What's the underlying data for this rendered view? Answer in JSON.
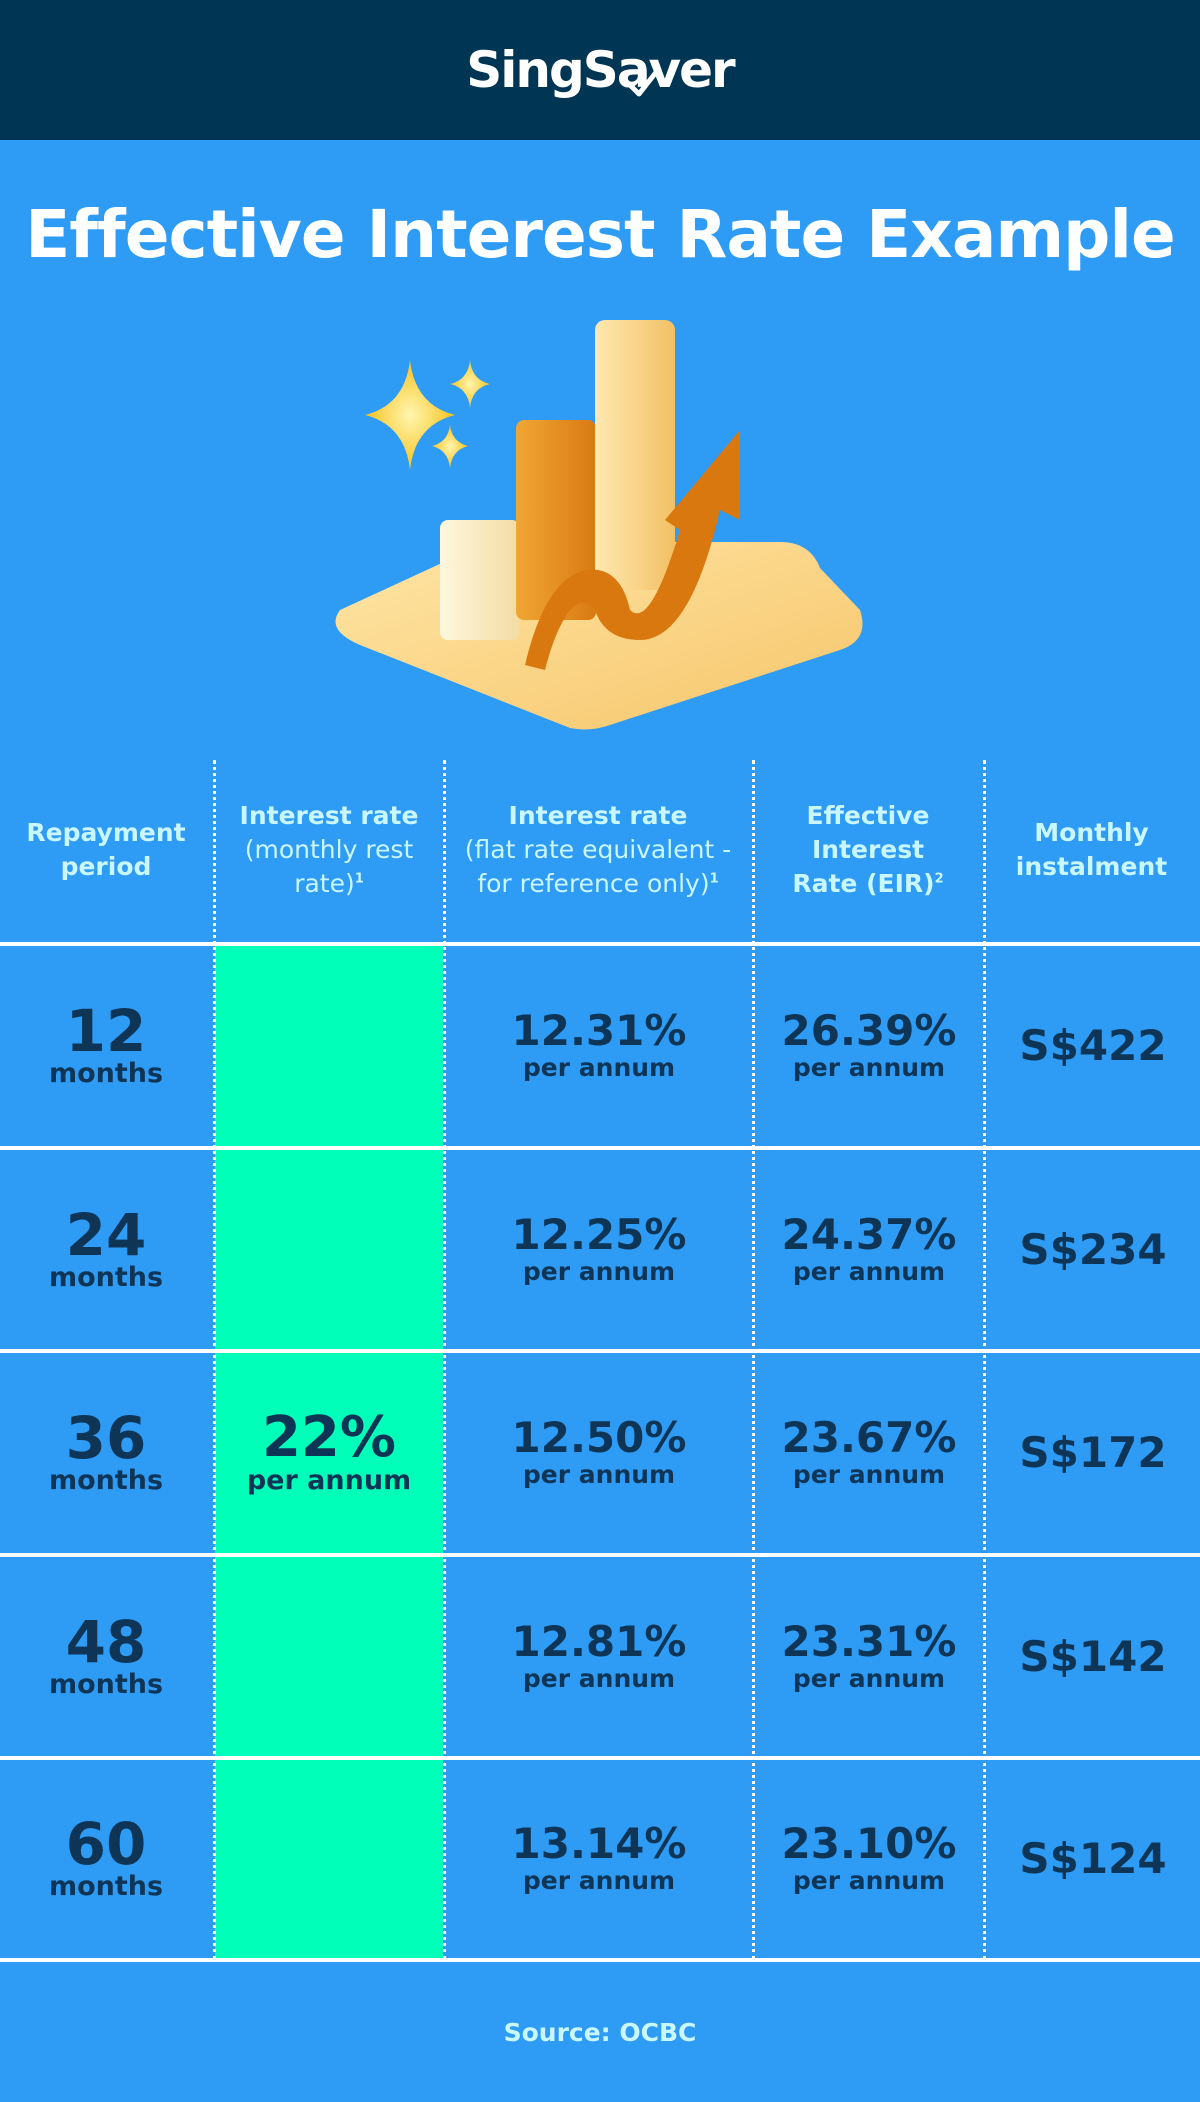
{
  "brand": {
    "logo_text": "SingSaver"
  },
  "page": {
    "title": "Effective Interest Rate Example"
  },
  "illustration": {
    "icon": "bar-chart-growth-icon"
  },
  "table": {
    "headers": [
      {
        "bold": "Repayment period",
        "light": "",
        "sup": ""
      },
      {
        "bold": "Interest rate",
        "light": "(monthly rest rate)",
        "sup": "1"
      },
      {
        "bold": "Interest rate",
        "light": "(flat rate equivalent - for reference only)",
        "sup": "1"
      },
      {
        "bold": "Effective Interest Rate (EIR)",
        "light": "",
        "sup": "2"
      },
      {
        "bold": "Monthly instalment",
        "light": "",
        "sup": ""
      }
    ],
    "monthly_rest_rate": {
      "value": "22%",
      "unit": "per annum"
    },
    "rows": [
      {
        "period": "12",
        "period_unit": "months",
        "flat_rate": "12.31%",
        "flat_unit": "per annum",
        "eir": "26.39%",
        "eir_unit": "per annum",
        "instalment": "S$422"
      },
      {
        "period": "24",
        "period_unit": "months",
        "flat_rate": "12.25%",
        "flat_unit": "per annum",
        "eir": "24.37%",
        "eir_unit": "per annum",
        "instalment": "S$234"
      },
      {
        "period": "36",
        "period_unit": "months",
        "flat_rate": "12.50%",
        "flat_unit": "per annum",
        "eir": "23.67%",
        "eir_unit": "per annum",
        "instalment": "S$172"
      },
      {
        "period": "48",
        "period_unit": "months",
        "flat_rate": "12.81%",
        "flat_unit": "per annum",
        "eir": "23.31%",
        "eir_unit": "per annum",
        "instalment": "S$142"
      },
      {
        "period": "60",
        "period_unit": "months",
        "flat_rate": "13.14%",
        "flat_unit": "per annum",
        "eir": "23.10%",
        "eir_unit": "per annum",
        "instalment": "S$124"
      }
    ]
  },
  "footer": {
    "source": "Source: OCBC"
  },
  "colors": {
    "header_bg": "#003554",
    "page_bg": "#2e9bf5",
    "highlight": "#00ffb8",
    "text_dark": "#0e3556",
    "header_text": "#c9f7ff"
  }
}
